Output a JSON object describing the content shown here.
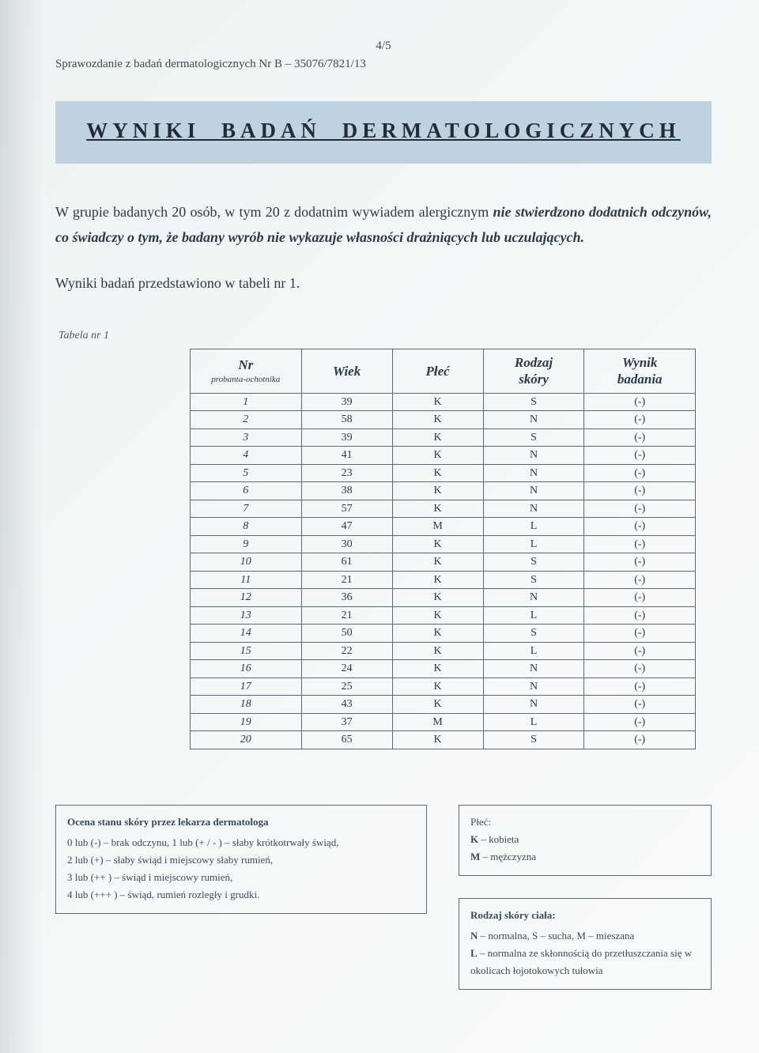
{
  "page": {
    "number": "4/5",
    "report_line": "Sprawozdanie z badań dermatologicznych  Nr B – 35076/7821/13"
  },
  "title": "WYNIKI   BADAŃ   DERMATOLOGICZNYCH",
  "paragraph": {
    "lead_plain": "W grupie badanych 20 osób, w tym 20 z dodatnim wywiadem alergicznym ",
    "emphasis": "nie stwierdzono dodatnich odczynów, co świadczy o tym, że badany wyrób nie wykazuje własności drażniących lub uczulających."
  },
  "line2": "Wyniki badań przedstawiono w tabeli nr 1.",
  "table": {
    "caption": "Tabela nr 1",
    "columns": [
      {
        "label": "Nr",
        "sub": "probanta-ochotnika"
      },
      {
        "label": "Wiek",
        "sub": ""
      },
      {
        "label": "Płeć",
        "sub": ""
      },
      {
        "label": "Rodzaj skóry",
        "sub": ""
      },
      {
        "label": "Wynik badania",
        "sub": ""
      }
    ],
    "rows": [
      [
        "1",
        "39",
        "K",
        "S",
        "(-)"
      ],
      [
        "2",
        "58",
        "K",
        "N",
        "(-)"
      ],
      [
        "3",
        "39",
        "K",
        "S",
        "(-)"
      ],
      [
        "4",
        "41",
        "K",
        "N",
        "(-)"
      ],
      [
        "5",
        "23",
        "K",
        "N",
        "(-)"
      ],
      [
        "6",
        "38",
        "K",
        "N",
        "(-)"
      ],
      [
        "7",
        "57",
        "K",
        "N",
        "(-)"
      ],
      [
        "8",
        "47",
        "M",
        "L",
        "(-)"
      ],
      [
        "9",
        "30",
        "K",
        "L",
        "(-)"
      ],
      [
        "10",
        "61",
        "K",
        "S",
        "(-)"
      ],
      [
        "11",
        "21",
        "K",
        "S",
        "(-)"
      ],
      [
        "12",
        "36",
        "K",
        "N",
        "(-)"
      ],
      [
        "13",
        "21",
        "K",
        "L",
        "(-)"
      ],
      [
        "14",
        "50",
        "K",
        "S",
        "(-)"
      ],
      [
        "15",
        "22",
        "K",
        "L",
        "(-)"
      ],
      [
        "16",
        "24",
        "K",
        "N",
        "(-)"
      ],
      [
        "17",
        "25",
        "K",
        "N",
        "(-)"
      ],
      [
        "18",
        "43",
        "K",
        "N",
        "(-)"
      ],
      [
        "19",
        "37",
        "M",
        "L",
        "(-)"
      ],
      [
        "20",
        "65",
        "K",
        "S",
        "(-)"
      ]
    ],
    "col_widths_pct": [
      22,
      18,
      18,
      20,
      22
    ]
  },
  "legend": {
    "assessment": {
      "title": "Ocena stanu skóry przez lekarza dermatologa",
      "lines": [
        "0 lub (-) – brak odczynu, 1 lub (+ / - ) – słaby krótkotrwały świąd,",
        "2 lub (+) – słaby świąd i miejscowy słaby rumień,",
        "3 lub (++ ) – świąd i miejscowy rumień,",
        "4 lub (+++ ) – świąd, rumień rozległy i grudki."
      ]
    },
    "sex": {
      "title": "Płeć:",
      "lines": [
        "K – kobieta",
        "M – mężczyzna"
      ]
    },
    "skin": {
      "title": "Rodzaj skóry ciała:",
      "lines": [
        "N – normalna, S – sucha, M – mieszana",
        "L – normalna ze skłonnością do przetłuszczania się w okolicach łojotokowych tułowia"
      ]
    }
  },
  "colors": {
    "text": "#2b3a45",
    "band_bg": "#c0d2df",
    "border": "#5a6a75",
    "page_bg": "#f4f7f8"
  }
}
